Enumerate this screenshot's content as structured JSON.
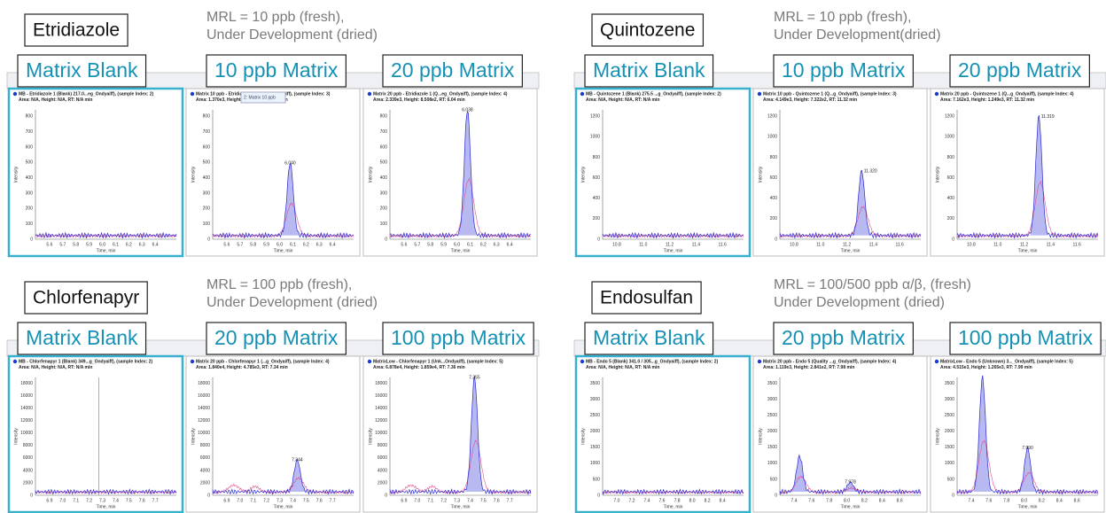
{
  "panels": [
    {
      "compound": "Etridiazole",
      "mrl": [
        "MRL = 10 ppb (fresh),",
        "Under Development (dried)"
      ],
      "labels": [
        "Matrix Blank",
        "10 ppb Matrix",
        "20 ppb Matrix"
      ],
      "tooltip": "2: Matrix 10 ppb",
      "xlabel": "Time, min",
      "ylabel": "Intensity",
      "yticks": [
        "0",
        "100",
        "200",
        "300",
        "400",
        "500",
        "600",
        "700",
        "800"
      ],
      "plots": [
        {
          "header": [
            "MB - Etridiazole 1 (Blank) 217.0...eg_Ondyaiff), (sample Index: 2)",
            "Area: N/A, Height: N/A, RT: N/A min"
          ],
          "xticks": [
            "5.6",
            "5.7",
            "5.8",
            "5.9",
            "6.0",
            "6.1",
            "6.2",
            "6.3",
            "6.4"
          ]
        },
        {
          "header": [
            "Matrix 10 ppb - Etridiazole 1 (Q...eg_Ondyaiff), (sample Index: 3)",
            "Area: 1.370e3, Height: 4.861e2, RT: 6.04 min"
          ],
          "xticks": [
            "5.6",
            "5.7",
            "5.8",
            "5.9",
            "6.0",
            "6.1",
            "6.2",
            "6.3",
            "6.4"
          ],
          "peak_label": "6.040"
        },
        {
          "header": [
            "Matrix 20 ppb - Etridiazole 1 (Q...eg_Ondyaiff), (sample Index: 4)",
            "Area: 2.339e3, Height: 8.508e2, RT: 6.04 min"
          ],
          "xticks": [
            "5.6",
            "5.7",
            "5.8",
            "5.9",
            "6.0",
            "6.1",
            "6.2",
            "6.3",
            "6.4"
          ],
          "peak_label": "6.038"
        }
      ]
    },
    {
      "compound": "Quintozene",
      "mrl": [
        "MRL = 10 ppb (fresh),",
        "Under Development(dried)"
      ],
      "labels": [
        "Matrix Blank",
        "10 ppb Matrix",
        "20 ppb Matrix"
      ],
      "xlabel": "Time, min",
      "ylabel": "Intensity",
      "yticks": [
        "0",
        "200",
        "400",
        "600",
        "800",
        "1000",
        "1200"
      ],
      "plots": [
        {
          "header": [
            "MB - Quintozene 1 (Blank) 275.5 ...g_Ondyaiff), (sample Index: 2)",
            "Area: N/A, Height: N/A, RT: N/A min"
          ],
          "xticks": [
            "10.8",
            "11.0",
            "11.2",
            "11.4",
            "11.6"
          ]
        },
        {
          "header": [
            "Matrix 10 ppb - Quintozene 1 (Q...g_Ondyaiff), (sample Index: 3)",
            "Area: 4.149e3, Height: 7.322e2, RT: 11.32 min"
          ],
          "xticks": [
            "10.8",
            "11.0",
            "11.2",
            "11.4",
            "11.6"
          ],
          "peak_label": "11.320"
        },
        {
          "header": [
            "Matrix 20 ppb - Quintozene 1 (Q...g_Ondyaiff), (sample Index: 4)",
            "Area: 7.162e3, Height: 1.249e3, RT: 11.32 min"
          ],
          "xticks": [
            "10.8",
            "11.0",
            "11.2",
            "11.4",
            "11.6"
          ],
          "peak_label": "11.319"
        }
      ]
    },
    {
      "compound": "Chlorfenapyr",
      "mrl": [
        "MRL = 100 ppb (fresh),",
        "Under Development (dried)"
      ],
      "labels": [
        "Matrix Blank",
        "20 ppb Matrix",
        "100 ppb Matrix"
      ],
      "xlabel": "Time, min",
      "ylabel": "Intensity",
      "yticks": [
        "0",
        "2000",
        "4000",
        "6000",
        "8000",
        "10000",
        "12000",
        "14000",
        "16000",
        "18000"
      ],
      "plots": [
        {
          "header": [
            "MB - Chlorfenapyr 1 (Blank) 349...g_Ondyaiff), (sample Index: 2)",
            "Area: N/A, Height: N/A, RT: N/A min"
          ],
          "xticks": [
            "6.9",
            "7.0",
            "7.1",
            "7.2",
            "7.3",
            "7.4",
            "7.5",
            "7.6",
            "7.7"
          ]
        },
        {
          "header": [
            "Matrix 20 ppb - Chlorfenapyr 1 (...g_Ondyaiff), (sample Index: 4)",
            "Area: 1.840e4, Height: 4.785e3, RT: 7.34 min"
          ],
          "xticks": [
            "6.9",
            "7.0",
            "7.1",
            "7.2",
            "7.3",
            "7.4",
            "7.5",
            "7.6",
            "7.7"
          ],
          "peak_label": "7.344"
        },
        {
          "header": [
            "MatrixLow - Chlorfenapyr 1 (Unk...Ondyaiff), (sample Index: 5)",
            "Area: 6.878e4, Height: 1.859e4, RT: 7.36 min"
          ],
          "xticks": [
            "6.9",
            "7.0",
            "7.1",
            "7.2",
            "7.3",
            "7.4",
            "7.5",
            "7.6",
            "7.7"
          ],
          "peak_label": "7.355"
        }
      ]
    },
    {
      "compound": "Endosulfan",
      "mrl": [
        "MRL = 100/500 ppb α/β, (fresh)",
        "Under Development (dried)"
      ],
      "labels": [
        "Matrix Blank",
        "20 ppb Matrix",
        "100 ppb Matrix"
      ],
      "xlabel": "Time, min",
      "ylabel": "Intensity",
      "yticks": [
        "0",
        "500",
        "1000",
        "1500",
        "2000",
        "2500",
        "3000",
        "3500"
      ],
      "plots": [
        {
          "header": [
            "MB - Endo 5 (Blank) 341.0 / 305...g_Ondyaiff), (sample Index: 2)",
            "Area: N/A, Height: N/A, RT: N/A min"
          ],
          "xticks": [
            "7.0",
            "7.2",
            "7.4",
            "7.6",
            "7.8",
            "8.0",
            "8.2",
            "8.4"
          ]
        },
        {
          "header": [
            "Matrix 20 ppb - Endo 5 (Quality ...g_Ondyaiff), (sample Index: 4)",
            "Area: 1.119e3, Height: 2.841e2, RT: 7.98 min"
          ],
          "xticks": [
            "7.4",
            "7.6",
            "7.8",
            "8.0",
            "8.2",
            "8.4",
            "8.6"
          ],
          "peak_label": "7.978"
        },
        {
          "header": [
            "MatrixLow - Endo 5 (Unknown) 3..._Ondyaiff), (sample Index: 5)",
            "Area: 4.515e3, Height: 1.265e3, RT: 7.99 min"
          ],
          "xticks": [
            "7.4",
            "7.6",
            "7.8",
            "8.0",
            "8.2",
            "8.4",
            "8.6"
          ],
          "peak_label": "7.990"
        }
      ]
    }
  ]
}
